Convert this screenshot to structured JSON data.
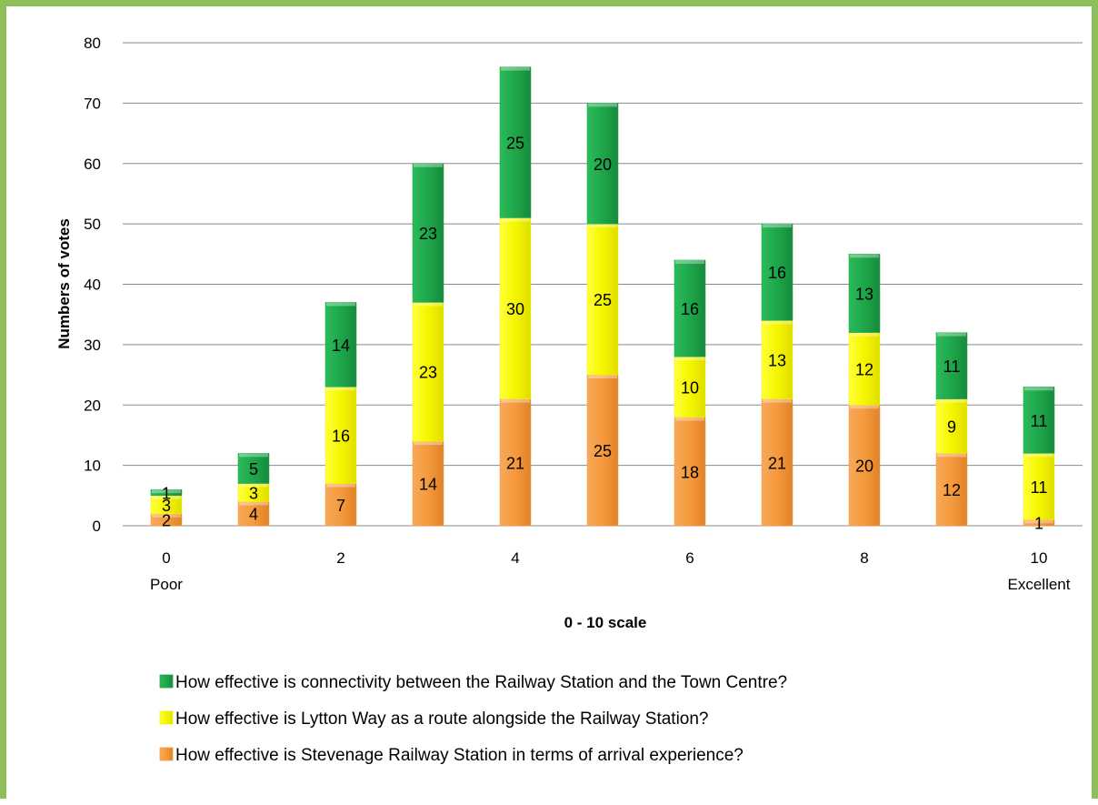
{
  "chart_data": {
    "type": "bar",
    "stacked": true,
    "xlabel": "0 - 10 scale",
    "ylabel": "Numbers of votes",
    "ylim": [
      0,
      80
    ],
    "yticks": [
      0,
      10,
      20,
      30,
      40,
      50,
      60,
      70,
      80
    ],
    "categories": [
      "0",
      "1",
      "2",
      "3",
      "4",
      "5",
      "6",
      "7",
      "8",
      "9",
      "10"
    ],
    "category_tick_labels": [
      "0\nPoor",
      "",
      "2",
      "",
      "4",
      "",
      "6",
      "",
      "8",
      "",
      "10\nExcellent"
    ],
    "grid": true,
    "legend_position": "bottom",
    "series": [
      {
        "name": "How effective is Stevenage Railway Station in terms of arrival experience?",
        "color": "#f59a3c",
        "values": [
          2,
          4,
          7,
          14,
          21,
          25,
          18,
          21,
          20,
          12,
          1
        ]
      },
      {
        "name": "How effective is Lytton Way as a route alongside the Railway Station?",
        "color": "#f5f500",
        "values": [
          3,
          3,
          16,
          23,
          30,
          25,
          10,
          13,
          12,
          9,
          11
        ]
      },
      {
        "name": "How effective is connectivity between the Railway Station and the Town Centre?",
        "color": "#1ea64a",
        "values": [
          1,
          5,
          14,
          23,
          25,
          20,
          16,
          16,
          13,
          11,
          11
        ]
      }
    ]
  }
}
